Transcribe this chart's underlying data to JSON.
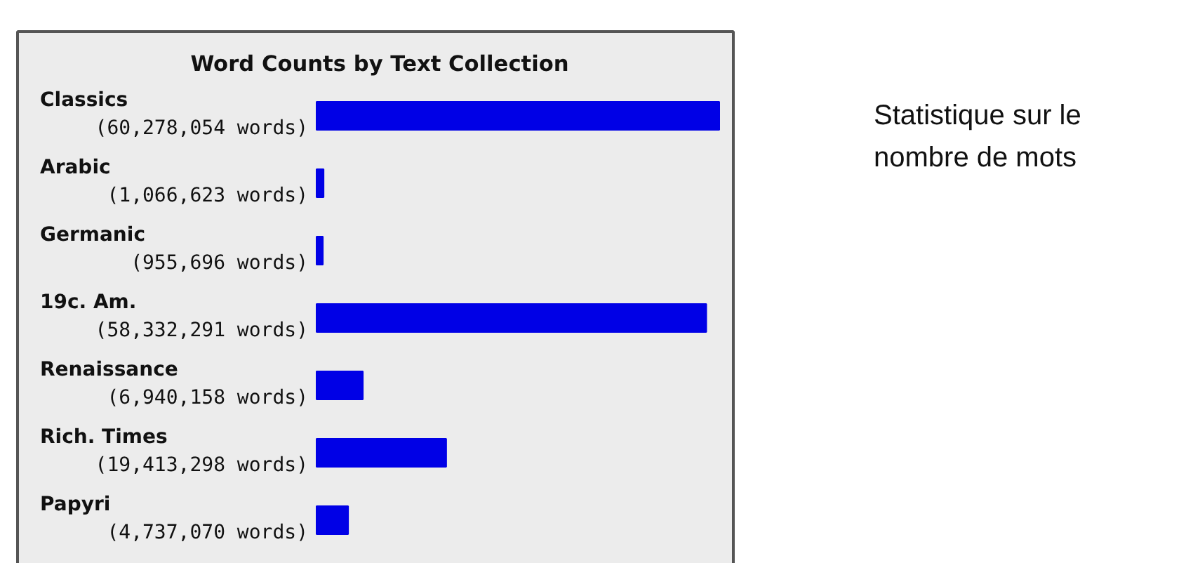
{
  "chart_data": {
    "type": "bar",
    "orientation": "horizontal",
    "title": "Word Counts by Text Collection",
    "categories": [
      "Classics",
      "Arabic",
      "Germanic",
      "19c. Am.",
      "Renaissance",
      "Rich. Times",
      "Papyri"
    ],
    "value_labels": [
      "(60,278,054 words)",
      "(1,066,623 words)",
      "(955,696 words)",
      "(58,332,291 words)",
      "(6,940,158 words)",
      "(19,413,298 words)",
      "(4,737,070 words)"
    ],
    "values": [
      60278054,
      1066623,
      955696,
      58332291,
      6940158,
      19413298,
      4737070
    ],
    "color": "#0000e6",
    "annotations": [
      "Statistique sur le nombre de mots"
    ]
  }
}
